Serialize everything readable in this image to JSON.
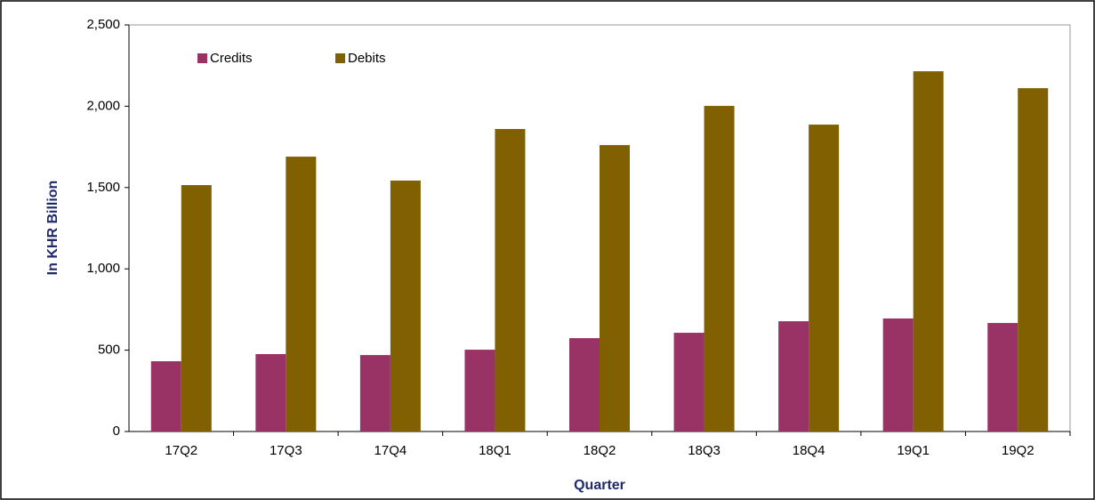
{
  "chart_data": {
    "type": "bar",
    "x_label": "Quarter",
    "y_label": "In KHR Billion",
    "categories": [
      "17Q2",
      "17Q3",
      "17Q4",
      "18Q1",
      "18Q2",
      "18Q3",
      "18Q4",
      "19Q1",
      "19Q2"
    ],
    "series": [
      {
        "name": "Credits",
        "color": "#993366",
        "values": [
          432,
          476,
          470,
          503,
          574,
          607,
          678,
          695,
          667
        ]
      },
      {
        "name": "Debits",
        "color": "#806000",
        "values": [
          1515,
          1690,
          1543,
          1860,
          1761,
          2002,
          1887,
          2215,
          2111
        ]
      }
    ],
    "ylim": [
      0,
      2500
    ],
    "yticks": [
      0,
      500,
      {
        "value": 1000,
        "label": "1,000"
      },
      {
        "value": 1500,
        "label": "1,500"
      },
      {
        "value": 2000,
        "label": "2,000"
      },
      {
        "value": 2500,
        "label": "2,500"
      }
    ],
    "grid": false,
    "legend": "top-left"
  }
}
